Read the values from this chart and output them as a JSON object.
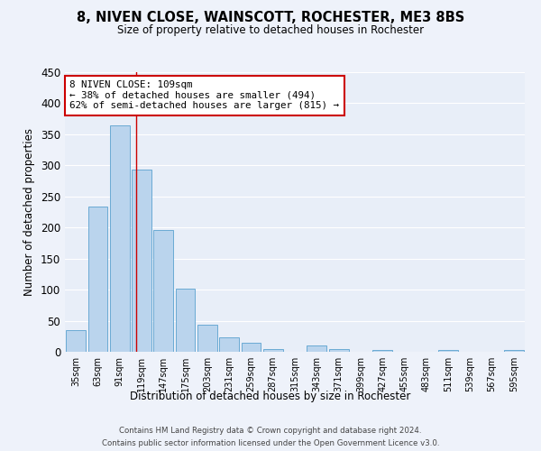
{
  "title": "8, NIVEN CLOSE, WAINSCOTT, ROCHESTER, ME3 8BS",
  "subtitle": "Size of property relative to detached houses in Rochester",
  "xlabel": "Distribution of detached houses by size in Rochester",
  "ylabel": "Number of detached properties",
  "categories": [
    "35sqm",
    "63sqm",
    "91sqm",
    "119sqm",
    "147sqm",
    "175sqm",
    "203sqm",
    "231sqm",
    "259sqm",
    "287sqm",
    "315sqm",
    "343sqm",
    "371sqm",
    "399sqm",
    "427sqm",
    "455sqm",
    "483sqm",
    "511sqm",
    "539sqm",
    "567sqm",
    "595sqm"
  ],
  "bar_values": [
    35,
    234,
    365,
    293,
    196,
    102,
    44,
    23,
    14,
    5,
    0,
    10,
    5,
    0,
    3,
    0,
    0,
    3,
    0,
    0,
    3
  ],
  "bar_color": "#bad4ed",
  "bar_edge_color": "#6aaad4",
  "ylim": [
    0,
    450
  ],
  "yticks": [
    0,
    50,
    100,
    150,
    200,
    250,
    300,
    350,
    400,
    450
  ],
  "property_label": "8 NIVEN CLOSE: 109sqm",
  "annotation_line1": "← 38% of detached houses are smaller (494)",
  "annotation_line2": "62% of semi-detached houses are larger (815) →",
  "vline_pos": 2.75,
  "footer_line1": "Contains HM Land Registry data © Crown copyright and database right 2024.",
  "footer_line2": "Contains public sector information licensed under the Open Government Licence v3.0.",
  "background_color": "#eef2fa",
  "plot_bg_color": "#e8eef8",
  "grid_color": "#ffffff",
  "vline_color": "#cc0000",
  "annotation_border_color": "#cc0000",
  "annotation_bg": "#ffffff"
}
